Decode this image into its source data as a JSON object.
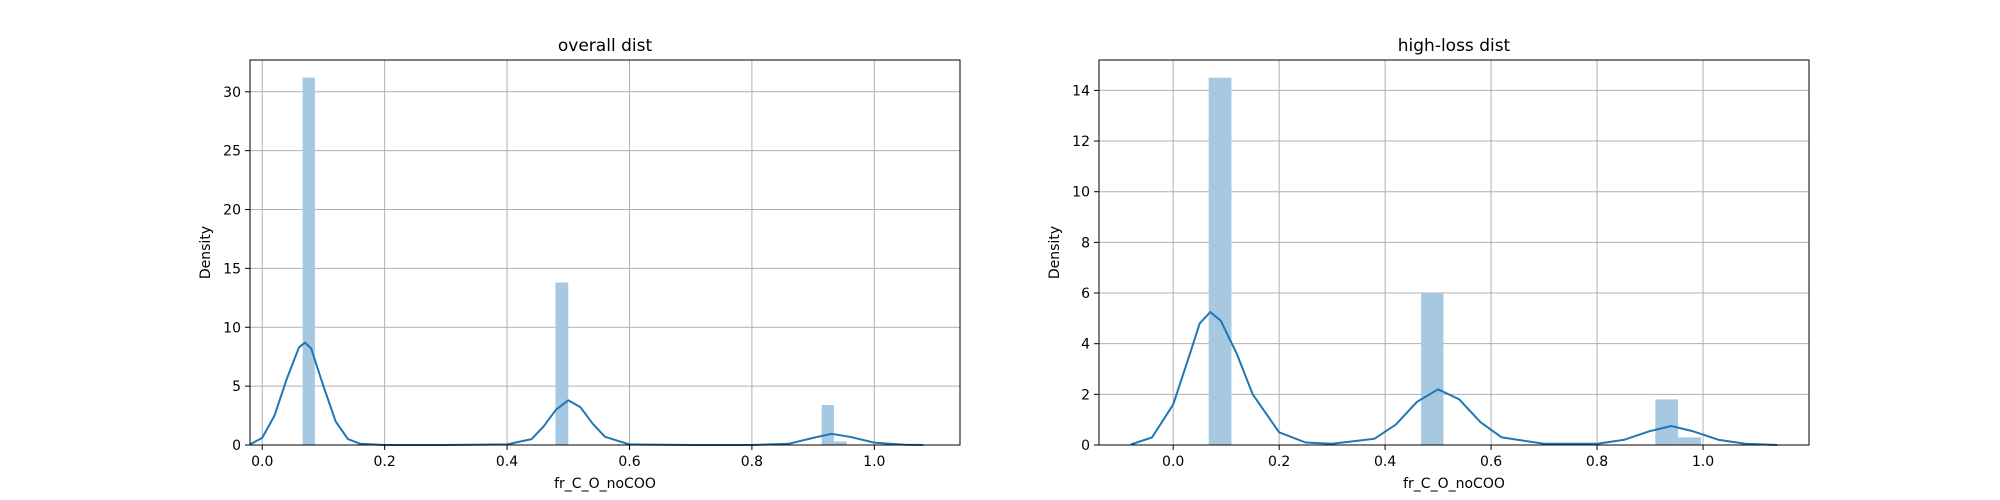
{
  "chart_data": [
    {
      "type": "histogram",
      "title": "overall dist",
      "xlabel": "fr_C_O_noCOO",
      "ylabel": "Density",
      "xlim": [
        -0.02,
        1.14
      ],
      "ylim": [
        0,
        32.7
      ],
      "xticks": [
        "0.0",
        "0.2",
        "0.4",
        "0.6",
        "0.8",
        "1.0"
      ],
      "xtick_values": [
        0.0,
        0.2,
        0.4,
        0.6,
        0.8,
        1.0
      ],
      "yticks": [
        "0",
        "5",
        "10",
        "15",
        "20",
        "25",
        "30"
      ],
      "ytick_values": [
        0,
        5,
        10,
        15,
        20,
        25,
        30
      ],
      "grid": true,
      "bar_color": "#a6c8e1",
      "line_color": "#1f77b4",
      "bars": [
        {
          "x0": 0.066,
          "x1": 0.086,
          "value": 31.2
        },
        {
          "x0": 0.479,
          "x1": 0.5,
          "value": 13.8
        },
        {
          "x0": 0.914,
          "x1": 0.934,
          "value": 3.4
        },
        {
          "x0": 0.934,
          "x1": 0.955,
          "value": 0.3
        }
      ],
      "kde": {
        "x": [
          -0.02,
          0.0,
          0.02,
          0.04,
          0.06,
          0.07,
          0.08,
          0.1,
          0.12,
          0.14,
          0.16,
          0.2,
          0.3,
          0.4,
          0.44,
          0.46,
          0.48,
          0.5,
          0.52,
          0.54,
          0.56,
          0.6,
          0.7,
          0.8,
          0.86,
          0.9,
          0.93,
          0.96,
          1.0,
          1.05,
          1.08
        ],
        "y": [
          0.05,
          0.6,
          2.5,
          5.6,
          8.3,
          8.7,
          8.2,
          5.0,
          2.0,
          0.5,
          0.1,
          0.0,
          0.0,
          0.05,
          0.5,
          1.6,
          3.0,
          3.8,
          3.2,
          1.8,
          0.7,
          0.05,
          0.0,
          0.0,
          0.1,
          0.6,
          0.95,
          0.7,
          0.2,
          0.02,
          0.0
        ]
      }
    },
    {
      "type": "histogram",
      "title": "high-loss dist",
      "xlabel": "fr_C_O_noCOO",
      "ylabel": "Density",
      "xlim": [
        -0.14,
        1.2
      ],
      "ylim": [
        0,
        15.2
      ],
      "xticks": [
        "0.0",
        "0.2",
        "0.4",
        "0.6",
        "0.8",
        "1.0"
      ],
      "xtick_values": [
        0.0,
        0.2,
        0.4,
        0.6,
        0.8,
        1.0
      ],
      "yticks": [
        "0",
        "2",
        "4",
        "6",
        "8",
        "10",
        "12",
        "14"
      ],
      "ytick_values": [
        0,
        2,
        4,
        6,
        8,
        10,
        12,
        14
      ],
      "grid": true,
      "bar_color": "#a6c8e1",
      "line_color": "#1f77b4",
      "bars": [
        {
          "x0": 0.067,
          "x1": 0.11,
          "value": 14.5
        },
        {
          "x0": 0.468,
          "x1": 0.51,
          "value": 6.0
        },
        {
          "x0": 0.91,
          "x1": 0.953,
          "value": 1.8
        },
        {
          "x0": 0.953,
          "x1": 0.996,
          "value": 0.3
        }
      ],
      "kde": {
        "x": [
          -0.08,
          -0.04,
          0.0,
          0.03,
          0.05,
          0.07,
          0.09,
          0.12,
          0.15,
          0.2,
          0.25,
          0.3,
          0.38,
          0.42,
          0.46,
          0.5,
          0.54,
          0.58,
          0.62,
          0.7,
          0.8,
          0.85,
          0.9,
          0.94,
          0.98,
          1.03,
          1.08,
          1.14
        ],
        "y": [
          0.02,
          0.3,
          1.6,
          3.5,
          4.8,
          5.25,
          4.9,
          3.6,
          2.0,
          0.5,
          0.1,
          0.05,
          0.25,
          0.8,
          1.7,
          2.2,
          1.8,
          0.9,
          0.3,
          0.05,
          0.05,
          0.2,
          0.55,
          0.75,
          0.55,
          0.2,
          0.05,
          0.0
        ]
      }
    }
  ]
}
